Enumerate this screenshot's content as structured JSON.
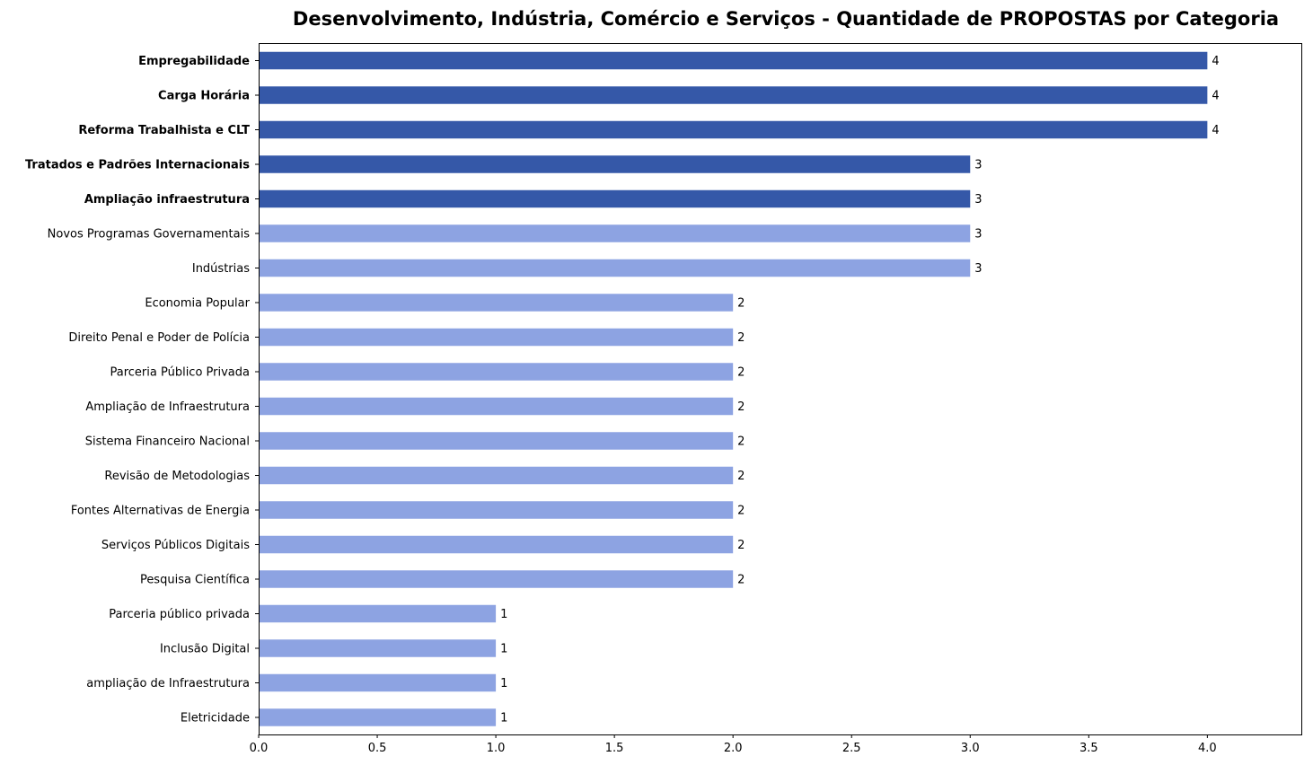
{
  "chart_data": {
    "type": "bar",
    "orientation": "horizontal",
    "title": "Desenvolvimento, Indústria, Comércio e Serviços - Quantidade de PROPOSTAS por Categoria",
    "xlabel": "",
    "ylabel": "",
    "xlim": [
      0,
      4.4
    ],
    "xticks": [
      0.0,
      0.5,
      1.0,
      1.5,
      2.0,
      2.5,
      3.0,
      3.5,
      4.0
    ],
    "xtick_labels": [
      "0.0",
      "0.5",
      "1.0",
      "1.5",
      "2.0",
      "2.5",
      "3.0",
      "3.5",
      "4.0"
    ],
    "grid": false,
    "colors": {
      "highlight": "#3558a8",
      "normal": "#8da3e2"
    },
    "categories": [
      "Empregabilidade",
      "Carga Horária",
      "Reforma Trabalhista e CLT",
      "Tratados e Padrões Internacionais",
      "Ampliação infraestrutura",
      "Novos Programas Governamentais",
      "Indústrias",
      "Economia Popular",
      "Direito Penal e Poder de Polícia",
      "Parceria Público Privada",
      "Ampliação de Infraestrutura",
      "Sistema Financeiro Nacional",
      "Revisão de Metodologias",
      "Fontes Alternativas de Energia",
      "Serviços Públicos Digitais",
      "Pesquisa Científica",
      "Parceria público privada",
      "Inclusão Digital",
      "ampliação de Infraestrutura",
      "Eletricidade"
    ],
    "values": [
      4,
      4,
      4,
      3,
      3,
      3,
      3,
      2,
      2,
      2,
      2,
      2,
      2,
      2,
      2,
      2,
      1,
      1,
      1,
      1
    ],
    "value_labels": [
      "4",
      "4",
      "4",
      "3",
      "3",
      "3",
      "3",
      "2",
      "2",
      "2",
      "2",
      "2",
      "2",
      "2",
      "2",
      "2",
      "1",
      "1",
      "1",
      "1"
    ],
    "highlighted": [
      true,
      true,
      true,
      true,
      true,
      false,
      false,
      false,
      false,
      false,
      false,
      false,
      false,
      false,
      false,
      false,
      false,
      false,
      false,
      false
    ]
  }
}
